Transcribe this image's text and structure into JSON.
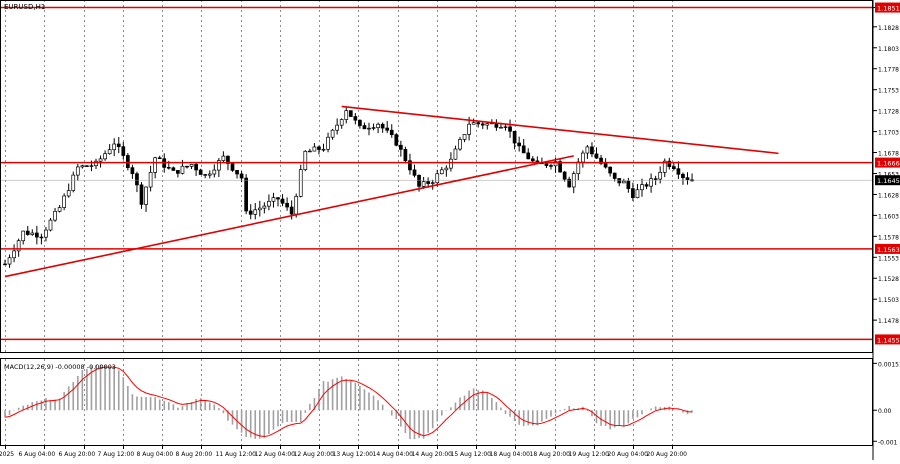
{
  "chart_data": {
    "type": "candlestick",
    "symbol_label": "EURUSD,H1",
    "price_axis": {
      "min": 1.144,
      "max": 1.186,
      "ticks": [
        "1.1851",
        "1.1828",
        "1.1803",
        "1.1778",
        "1.1753",
        "1.1728",
        "1.1703",
        "1.1678",
        "1.1653",
        "1.1628",
        "1.1603",
        "1.1578",
        "1.1553",
        "1.1528",
        "1.1503",
        "1.1478"
      ],
      "tick_values": [
        1.1851,
        1.1828,
        1.1803,
        1.1778,
        1.1753,
        1.1728,
        1.1703,
        1.1678,
        1.1653,
        1.1628,
        1.1603,
        1.1578,
        1.1553,
        1.1528,
        1.1503,
        1.1478
      ]
    },
    "current_price_label": "1.1645",
    "current_price": 1.1645,
    "horizontal_levels": [
      {
        "label": "1.1851",
        "value": 1.1851
      },
      {
        "label": "1.1666",
        "value": 1.1666
      },
      {
        "label": "1.1563",
        "value": 1.1563
      },
      {
        "label": "1.1455",
        "value": 1.1455
      }
    ],
    "trend_lines": [
      {
        "name": "support",
        "from": [
          0,
          1.153
        ],
        "to": [
          125,
          1.1674
        ]
      },
      {
        "name": "resistance",
        "from": [
          74,
          1.1733
        ],
        "to": [
          170,
          1.1677
        ]
      }
    ],
    "time_labels": [
      "5 Aug 2025",
      "6 Aug 04:00",
      "6 Aug 20:00",
      "7 Aug 12:00",
      "8 Aug 04:00",
      "8 Aug 20:00",
      "11 Aug 12:00",
      "12 Aug 04:00",
      "12 Aug 20:00",
      "13 Aug 12:00",
      "14 Aug 04:00",
      "14 Aug 20:00",
      "15 Aug 12:00",
      "18 Aug 04:00",
      "18 Aug 20:00",
      "19 Aug 12:00",
      "20 Aug 04:00",
      "20 Aug 20:00"
    ],
    "close_anchors": [
      [
        0,
        1.1545
      ],
      [
        4,
        1.1583
      ],
      [
        8,
        1.158
      ],
      [
        12,
        1.1612
      ],
      [
        16,
        1.166
      ],
      [
        20,
        1.1664
      ],
      [
        24,
        1.169
      ],
      [
        28,
        1.1655
      ],
      [
        30,
        1.162
      ],
      [
        33,
        1.1672
      ],
      [
        37,
        1.1654
      ],
      [
        41,
        1.1664
      ],
      [
        44,
        1.165
      ],
      [
        48,
        1.1672
      ],
      [
        52,
        1.1648
      ],
      [
        53,
        1.1605
      ],
      [
        56,
        1.1612
      ],
      [
        60,
        1.1623
      ],
      [
        63,
        1.1605
      ],
      [
        66,
        1.1678
      ],
      [
        70,
        1.1684
      ],
      [
        72,
        1.1702
      ],
      [
        75,
        1.173
      ],
      [
        78,
        1.1707
      ],
      [
        82,
        1.1713
      ],
      [
        86,
        1.169
      ],
      [
        89,
        1.166
      ],
      [
        91,
        1.1637
      ],
      [
        94,
        1.1645
      ],
      [
        98,
        1.1668
      ],
      [
        102,
        1.1713
      ],
      [
        106,
        1.1712
      ],
      [
        110,
        1.1712
      ],
      [
        113,
        1.1682
      ],
      [
        117,
        1.1662
      ],
      [
        121,
        1.1667
      ],
      [
        124,
        1.164
      ],
      [
        126,
        1.1667
      ],
      [
        128,
        1.1685
      ],
      [
        131,
        1.1665
      ],
      [
        134,
        1.1645
      ],
      [
        136,
        1.1642
      ],
      [
        138,
        1.1628
      ],
      [
        141,
        1.164
      ],
      [
        143,
        1.1647
      ],
      [
        145,
        1.1667
      ],
      [
        147,
        1.1662
      ],
      [
        149,
        1.165
      ],
      [
        151,
        1.1645
      ]
    ],
    "macd": {
      "label": "MACD(12,26,9) -0.00008 -0.00003",
      "ticks": [
        "0.00151",
        "0.00",
        "-0.001"
      ],
      "tick_values": [
        0.00151,
        0.0,
        -0.001
      ],
      "min": -0.00112,
      "max": 0.00165,
      "hist_anchors": [
        [
          0,
          -0.0002
        ],
        [
          6,
          0.0003
        ],
        [
          12,
          0.0004
        ],
        [
          17,
          0.0013
        ],
        [
          20,
          0.0015
        ],
        [
          25,
          0.0013
        ],
        [
          28,
          0.0005
        ],
        [
          33,
          0.0004
        ],
        [
          38,
          0.0001
        ],
        [
          43,
          0.0004
        ],
        [
          46,
          0.0002
        ],
        [
          49,
          -0.0003
        ],
        [
          53,
          -0.0009
        ],
        [
          57,
          -0.0009
        ],
        [
          61,
          -0.0004
        ],
        [
          65,
          -0.0004
        ],
        [
          67,
          0.0002
        ],
        [
          70,
          0.0009
        ],
        [
          74,
          0.0011
        ],
        [
          77,
          0.0009
        ],
        [
          81,
          0.0005
        ],
        [
          86,
          -0.0003
        ],
        [
          89,
          -0.0009
        ],
        [
          92,
          -0.0009
        ],
        [
          96,
          -0.0002
        ],
        [
          100,
          0.0004
        ],
        [
          103,
          0.0007
        ],
        [
          106,
          0.0006
        ],
        [
          110,
          -0.0001
        ],
        [
          113,
          -0.0005
        ],
        [
          117,
          -0.0005
        ],
        [
          120,
          -0.0002
        ],
        [
          124,
          0.0001
        ],
        [
          127,
          0.0001
        ],
        [
          130,
          -0.0004
        ],
        [
          133,
          -0.0006
        ],
        [
          136,
          -0.0005
        ],
        [
          140,
          -0.0001
        ],
        [
          143,
          0.0001
        ],
        [
          146,
          0.0001
        ],
        [
          150,
          -0.0001
        ]
      ]
    },
    "grid": true,
    "colors": {
      "level_line": "#e00000",
      "trend_line": "#e00000",
      "candle": "#000000",
      "signal_line": "#ff0000",
      "histogram": "#a0a0a0",
      "current_price_bg": "#000000"
    }
  }
}
